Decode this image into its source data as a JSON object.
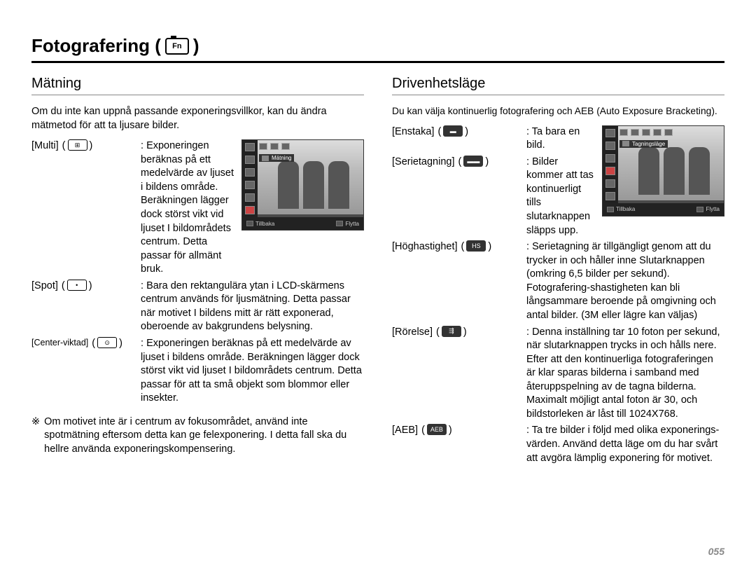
{
  "page": {
    "title_prefix": "Fotografering (",
    "title_suffix": ")",
    "camera_label": "Fn",
    "page_number": "055"
  },
  "left": {
    "heading": "Mätning",
    "intro": "Om du inte kan uppnå passande exponeringsvillkor, kan du ändra mätmetod för att ta ljusare bilder.",
    "items": [
      {
        "label": "[Multi]",
        "icon": "⊞",
        "body": "Exponeringen beräknas på ett medelvärde av ljuset i bildens område. Beräkningen lägger dock störst vikt vid ljuset I bildområdets centrum. Detta passar för allmänt bruk."
      },
      {
        "label": "[Spot]",
        "icon": "•",
        "body": "Bara den rektangulära ytan i LCD-skärmens centrum används för ljusmätning. Detta passar när motivet I bildens mitt är rätt exponerad, oberoende av bakgrundens belysning."
      },
      {
        "label": "[Center-viktad]",
        "icon": "⊙",
        "body": "Exponeringen beräknas på ett medelvärde av ljuset i bildens område. Beräkningen lägger dock störst vikt vid ljuset I bildområdets centrum. Detta passar för att ta små objekt som blommor eller insekter."
      }
    ],
    "note_marker": "※",
    "note": "Om motivet inte är i centrum av fokusområdet, använd inte spotmätning eftersom detta kan ge felexponering. I detta fall ska du hellre använda exponeringskompensering.",
    "screenshot": {
      "menu_label": "Mätning",
      "back": "Tillbaka",
      "move": "Flytta"
    }
  },
  "right": {
    "heading": "Drivenhetsläge",
    "intro": "Du kan välja kontinuerlig fotografering och AEB (Auto Exposure Bracketing).",
    "items": [
      {
        "label": "[Enstaka]",
        "icon": "▬",
        "dark": true,
        "body": "Ta bara en bild."
      },
      {
        "label": "[Serietagning]",
        "icon": "▬▬",
        "dark": true,
        "body": "Bilder kommer att tas kontinuerligt tills slutarknappen släpps upp."
      },
      {
        "label": "[Höghastighet]",
        "icon": "HS",
        "dark": true,
        "body": "Serietagning är tillgängligt genom att du trycker in och håller inne Slutarknappen (omkring 6,5 bilder per sekund). Fotografering-shastigheten kan bli långsammare beroende på omgivning och antal bilder. (3M eller lägre kan väljas)"
      },
      {
        "label": "[Rörelse]",
        "icon": "⇶",
        "dark": true,
        "body": "Denna inställning tar 10 foton per sekund, när slutarknappen trycks in och hålls nere. Efter att den kontinuerliga fotograferingen är klar sparas bilderna i samband med återuppspelning av de tagna bilderna. Maximalt möjligt antal foton är 30, och bildstorleken är låst till 1024X768."
      },
      {
        "label": "[AEB]",
        "icon": "AEB",
        "dark": true,
        "body": "Ta tre bilder i följd med olika exponerings-värden. Använd detta läge om du har svårt att avgöra lämplig exponering för motivet."
      }
    ],
    "screenshot": {
      "menu_label": "Tagningsläge",
      "back": "Tillbaka",
      "move": "Flytta"
    }
  }
}
